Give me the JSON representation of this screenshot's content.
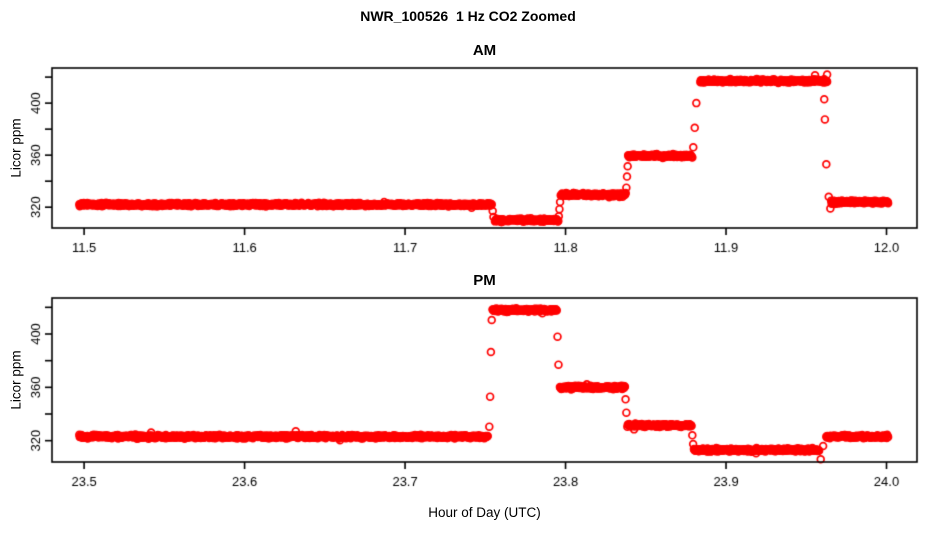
{
  "title": "NWR_100526  1 Hz CO2 Zoomed",
  "xlabel": "Hour of Day (UTC)",
  "ylabel": "Licor ppm",
  "colors": {
    "points": "#FF0000",
    "axis": "#000000",
    "text": "#000000",
    "background": "#FFFFFF"
  },
  "chart_data": [
    {
      "type": "scatter",
      "panel": "AM",
      "title": "AM",
      "ylabel": "Licor ppm",
      "marker": "open-circle",
      "sample_rate_hz": 1,
      "grid": false,
      "legend": null,
      "xlim": [
        11.48,
        12.019
      ],
      "ylim": [
        304,
        427
      ],
      "xticks": [
        11.5,
        11.6,
        11.7,
        11.8,
        11.9,
        12.0
      ],
      "xtick_labels": [
        "11.5",
        "11.6",
        "11.7",
        "11.8",
        "11.9",
        "12.0"
      ],
      "yticks": [
        320,
        340,
        360,
        380,
        400,
        420
      ],
      "ytick_labels": [
        "320",
        "",
        "360",
        "",
        "400",
        ""
      ],
      "segments": [
        {
          "t0": 11.497,
          "t1": 11.754,
          "ppm": 322
        },
        {
          "t0": 11.756,
          "t1": 11.7955,
          "ppm": 310
        },
        {
          "t0": 11.797,
          "t1": 11.8375,
          "ppm": 329.5
        },
        {
          "t0": 11.839,
          "t1": 11.879,
          "ppm": 359.5
        },
        {
          "t0": 11.884,
          "t1": 11.963,
          "ppm": 417
        },
        {
          "t0": 11.9655,
          "t1": 12.001,
          "ppm": 324
        }
      ],
      "transition_points": [
        [
          11.7546,
          317
        ],
        [
          11.7551,
          312.5
        ],
        [
          11.7958,
          313
        ],
        [
          11.7962,
          318.5
        ],
        [
          11.7966,
          324
        ],
        [
          11.8379,
          335
        ],
        [
          11.8383,
          343.5
        ],
        [
          11.8387,
          351.5
        ],
        [
          11.8796,
          366
        ],
        [
          11.8805,
          381
        ],
        [
          11.8815,
          400
        ],
        [
          11.963,
          422
        ],
        [
          11.9612,
          403
        ],
        [
          11.9616,
          387.5
        ],
        [
          11.9625,
          353
        ],
        [
          11.964,
          328
        ],
        [
          11.965,
          319
        ]
      ]
    },
    {
      "type": "scatter",
      "panel": "PM",
      "title": "PM",
      "ylabel": "Licor ppm",
      "marker": "open-circle",
      "sample_rate_hz": 1,
      "grid": false,
      "legend": null,
      "xlim": [
        23.48,
        24.019
      ],
      "ylim": [
        304,
        427
      ],
      "xticks": [
        23.5,
        23.6,
        23.7,
        23.8,
        23.9,
        24.0
      ],
      "xtick_labels": [
        "23.5",
        "23.6",
        "23.7",
        "23.8",
        "23.9",
        "24.0"
      ],
      "yticks": [
        320,
        340,
        360,
        380,
        400,
        420
      ],
      "ytick_labels": [
        "320",
        "",
        "360",
        "",
        "400",
        ""
      ],
      "segments": [
        {
          "t0": 23.497,
          "t1": 23.7515,
          "ppm": 323
        },
        {
          "t0": 23.7545,
          "t1": 23.7945,
          "ppm": 418
        },
        {
          "t0": 23.7965,
          "t1": 23.837,
          "ppm": 360
        },
        {
          "t0": 23.8385,
          "t1": 23.8785,
          "ppm": 331.5
        },
        {
          "t0": 23.88,
          "t1": 23.958,
          "ppm": 313
        },
        {
          "t0": 23.9625,
          "t1": 24.001,
          "ppm": 323
        }
      ],
      "transition_points": [
        [
          23.7525,
          330.5
        ],
        [
          23.753,
          353
        ],
        [
          23.7535,
          386.5
        ],
        [
          23.754,
          410.5
        ],
        [
          23.795,
          398
        ],
        [
          23.7956,
          377
        ],
        [
          23.8374,
          351
        ],
        [
          23.8379,
          341
        ],
        [
          23.879,
          324
        ],
        [
          23.8795,
          317.5
        ],
        [
          23.959,
          306
        ],
        [
          23.9605,
          316
        ]
      ]
    }
  ]
}
